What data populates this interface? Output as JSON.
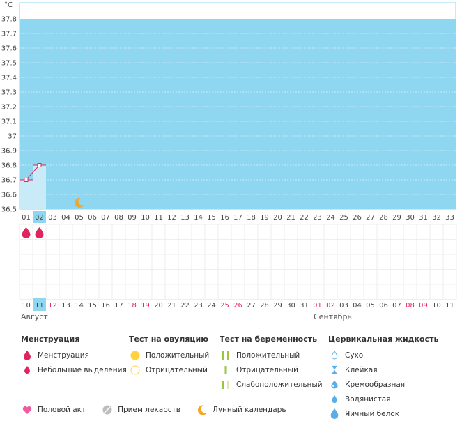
{
  "chart_data": {
    "type": "line",
    "unit": "°C",
    "ylim": [
      36.5,
      37.8
    ],
    "y_ticks": [
      "37.8",
      "37.7",
      "37.6",
      "37.5",
      "37.4",
      "37.3",
      "37.2",
      "37.1",
      "37",
      "36.9",
      "36.8",
      "36.7",
      "36.6",
      "36.5"
    ],
    "cycle_days": [
      "01",
      "02",
      "03",
      "04",
      "05",
      "06",
      "07",
      "08",
      "09",
      "10",
      "11",
      "12",
      "13",
      "14",
      "15",
      "16",
      "17",
      "18",
      "19",
      "20",
      "21",
      "22",
      "23",
      "24",
      "25",
      "26",
      "27",
      "28",
      "29",
      "30",
      "31",
      "32",
      "33"
    ],
    "calendar_dates": [
      "10",
      "11",
      "12",
      "13",
      "14",
      "15",
      "16",
      "17",
      "18",
      "19",
      "20",
      "21",
      "22",
      "23",
      "24",
      "25",
      "26",
      "27",
      "28",
      "29",
      "30",
      "31",
      "01",
      "02",
      "03",
      "04",
      "05",
      "06",
      "07",
      "08",
      "09",
      "10",
      "11"
    ],
    "weekend_dates": [
      2,
      8,
      9,
      15,
      16,
      22,
      23,
      29,
      30
    ],
    "current_index": 1,
    "series": [
      {
        "values": [
          36.7,
          36.8
        ]
      }
    ],
    "menstruation_days": [
      0,
      1
    ],
    "moon_day_index": 4,
    "months": {
      "first": "Август",
      "second": "Сентябрь"
    },
    "colors": {
      "fill": "#8fd6f0",
      "accent": "#e0245e",
      "bar": "#c9ebf8",
      "current": "#8fd6f0"
    }
  },
  "legend": {
    "menstruation": {
      "title": "Менструация",
      "items": [
        "Менструация",
        "Небольшие выделения"
      ]
    },
    "ovulation": {
      "title": "Тест на овуляцию",
      "items": [
        "Положительный",
        "Отрицательный"
      ]
    },
    "pregnancy": {
      "title": "Тест на беременность",
      "items": [
        "Положительный",
        "Отрицательный",
        "Слабоположительный"
      ]
    },
    "cervical": {
      "title": "Цервикальная жидкость",
      "items": [
        "Сухо",
        "Клейкая",
        "Кремообразная",
        "Водянистая",
        "Яичный белок"
      ]
    },
    "bottom": [
      "Половой акт",
      "Прием лекарств",
      "Лунный календарь"
    ]
  }
}
